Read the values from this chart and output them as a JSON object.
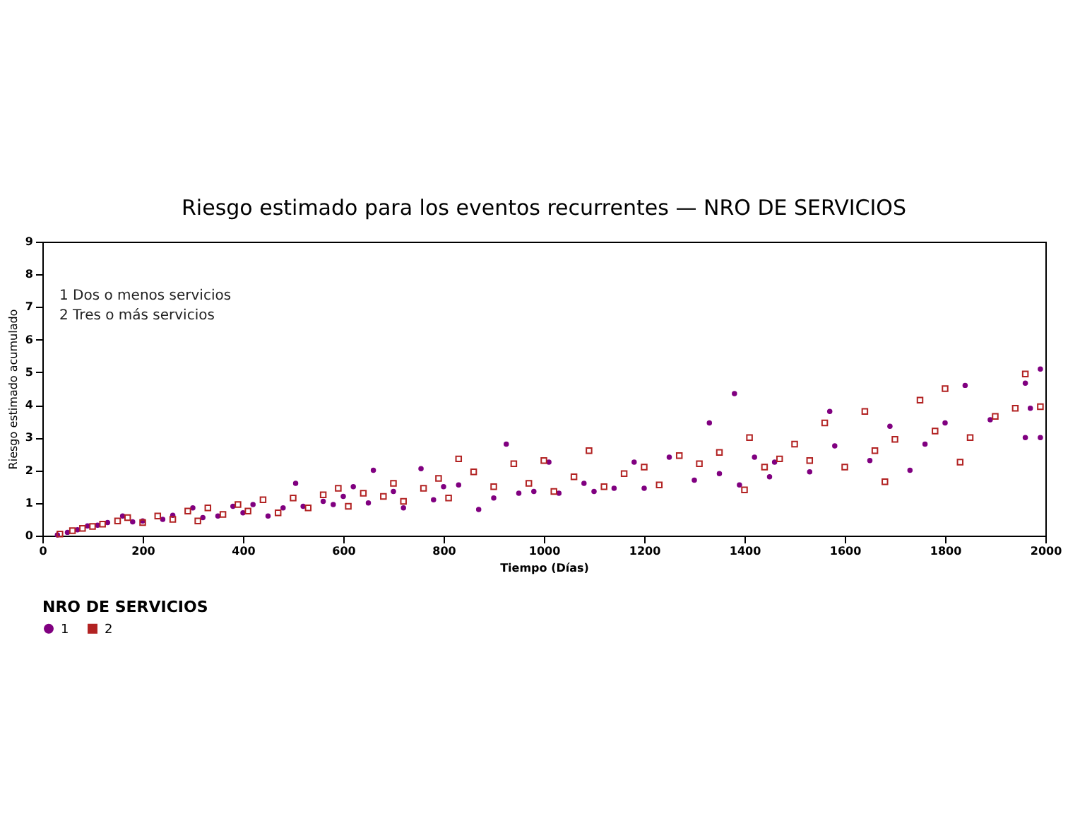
{
  "chart_data": {
    "type": "scatter",
    "title": "Riesgo estimado para los eventos recurrentes — NRO DE SERVICIOS",
    "xlabel": "Tiempo (Días)",
    "ylabel": "Riesgo estimado acumulado",
    "legend_title": "NRO DE SERVICIOS",
    "annotations": [
      "1 Dos o menos servicios",
      "2 Tres o más servicios"
    ],
    "xlim": [
      0,
      2000
    ],
    "xticks": [
      0,
      200,
      400,
      600,
      800,
      1000,
      1200,
      1400,
      1600,
      1800,
      2000
    ],
    "ylim": [
      0,
      9
    ],
    "yticks": [
      0,
      1,
      2,
      3,
      4,
      5,
      6,
      7,
      8,
      9
    ],
    "grid": false,
    "legend": "bottom",
    "series": [
      {
        "name": "1",
        "color": "#800080",
        "marker": "circle",
        "x": [
          30,
          50,
          70,
          90,
          110,
          130,
          160,
          180,
          200,
          240,
          260,
          300,
          320,
          350,
          380,
          400,
          420,
          450,
          480,
          505,
          520,
          560,
          580,
          600,
          620,
          650,
          660,
          700,
          720,
          755,
          780,
          800,
          830,
          870,
          900,
          925,
          950,
          980,
          1010,
          1030,
          1080,
          1100,
          1140,
          1180,
          1200,
          1250,
          1300,
          1330,
          1350,
          1380,
          1390,
          1420,
          1450,
          1460,
          1530,
          1570,
          1580,
          1650,
          1690,
          1730,
          1760,
          1800,
          1840,
          1890,
          1960,
          1960,
          1970,
          1990,
          1990
        ],
        "values": [
          0.02,
          0.1,
          0.18,
          0.3,
          0.32,
          0.4,
          0.6,
          0.42,
          0.45,
          0.5,
          0.62,
          0.85,
          0.55,
          0.6,
          0.9,
          0.7,
          0.95,
          0.6,
          0.85,
          1.6,
          0.9,
          1.05,
          0.95,
          1.2,
          1.5,
          1.0,
          2.0,
          1.35,
          0.85,
          2.05,
          1.1,
          1.5,
          1.55,
          0.8,
          1.15,
          2.8,
          1.3,
          1.35,
          2.25,
          1.3,
          1.6,
          1.35,
          1.45,
          2.25,
          1.45,
          2.4,
          1.7,
          3.45,
          1.9,
          4.35,
          1.55,
          2.4,
          1.8,
          2.25,
          1.95,
          3.8,
          2.75,
          2.3,
          3.35,
          2.0,
          2.8,
          3.45,
          4.6,
          3.55,
          4.67,
          3.0,
          3.9,
          5.1,
          3.0
        ]
      },
      {
        "name": "2",
        "color": "#b22222",
        "marker": "square",
        "x": [
          35,
          60,
          80,
          100,
          120,
          150,
          170,
          200,
          230,
          260,
          290,
          310,
          330,
          360,
          390,
          410,
          440,
          470,
          500,
          530,
          560,
          590,
          610,
          640,
          680,
          700,
          720,
          760,
          790,
          810,
          830,
          860,
          900,
          940,
          970,
          1000,
          1020,
          1060,
          1090,
          1120,
          1160,
          1200,
          1230,
          1270,
          1310,
          1350,
          1400,
          1410,
          1440,
          1470,
          1500,
          1530,
          1560,
          1600,
          1640,
          1660,
          1680,
          1700,
          1750,
          1780,
          1800,
          1830,
          1850,
          1900,
          1940,
          1960,
          1990
        ],
        "values": [
          0.05,
          0.15,
          0.22,
          0.28,
          0.35,
          0.45,
          0.55,
          0.4,
          0.6,
          0.5,
          0.75,
          0.45,
          0.85,
          0.65,
          0.95,
          0.75,
          1.1,
          0.7,
          1.15,
          0.85,
          1.25,
          1.45,
          0.9,
          1.3,
          1.2,
          1.6,
          1.05,
          1.45,
          1.75,
          1.15,
          2.35,
          1.95,
          1.5,
          2.2,
          1.6,
          2.3,
          1.35,
          1.8,
          2.6,
          1.5,
          1.9,
          2.1,
          1.55,
          2.45,
          2.2,
          2.55,
          1.4,
          3.0,
          2.1,
          2.35,
          2.8,
          2.3,
          3.45,
          2.1,
          3.8,
          2.6,
          1.65,
          2.95,
          4.15,
          3.2,
          4.5,
          2.25,
          3.0,
          3.65,
          3.9,
          4.95,
          3.95
        ]
      }
    ]
  }
}
